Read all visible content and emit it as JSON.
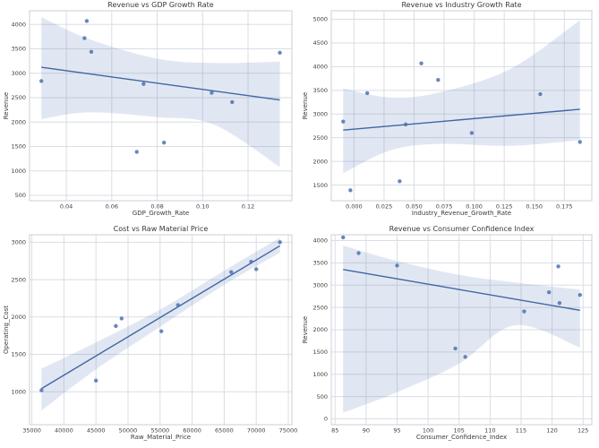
{
  "figure": {
    "background": "#ffffff"
  },
  "style": {
    "accent": "#4c72b0",
    "line_color": "#3e66a4",
    "band_color": "#4c72b0",
    "band_opacity": 0.17,
    "point_opacity": 0.85,
    "grid_color": "#dadde4",
    "spine_color": "#cbcfd6",
    "text_color": "#3f3f3f"
  },
  "chart_data": [
    {
      "type": "scatter",
      "title": "Revenue vs GDP Growth Rate",
      "xlabel": "GDP_Growth_Rate",
      "ylabel": "Revenue",
      "points": {
        "x": [
          0.029,
          0.048,
          0.049,
          0.051,
          0.071,
          0.074,
          0.083,
          0.104,
          0.113,
          0.134
        ],
        "y": [
          2840,
          3720,
          4070,
          3440,
          1390,
          2780,
          1580,
          2600,
          2410,
          3420
        ]
      },
      "regression_line": true,
      "ci_band": {
        "x": [
          0.029,
          0.05,
          0.08,
          0.105,
          0.134
        ],
        "upper": [
          4150,
          3700,
          3300,
          3210,
          3240
        ],
        "lower": [
          2060,
          2200,
          2100,
          1950,
          1080
        ]
      },
      "xlim": [
        0.0238,
        0.1393
      ],
      "ylim": [
        390,
        4280
      ],
      "xticks": {
        "values": [
          0.04,
          0.06,
          0.08,
          0.1,
          0.12
        ],
        "labels": [
          "0.04",
          "0.06",
          "0.08",
          "0.10",
          "0.12"
        ]
      },
      "yticks": {
        "values": [
          500,
          1000,
          1500,
          2000,
          2500,
          3000,
          3500,
          4000
        ],
        "labels": [
          "500",
          "1000",
          "1500",
          "2000",
          "2500",
          "3000",
          "3500",
          "4000"
        ]
      },
      "grid": true,
      "legend": null
    },
    {
      "type": "scatter",
      "title": "Revenue vs Industry Growth Rate",
      "xlabel": "Industry_Revenue_Growth_Rate",
      "ylabel": "Revenue",
      "points": {
        "x": [
          -0.009,
          -0.003,
          0.011,
          0.038,
          0.043,
          0.056,
          0.07,
          0.098,
          0.155,
          0.188
        ],
        "y": [
          2840,
          1390,
          3440,
          1580,
          2780,
          4070,
          3720,
          2600,
          3420,
          2410
        ]
      },
      "regression_line": true,
      "ci_band": {
        "x": [
          -0.009,
          0.03,
          0.07,
          0.13,
          0.188
        ],
        "upper": [
          3540,
          3350,
          3450,
          3950,
          4980
        ],
        "lower": [
          1750,
          2230,
          2370,
          2330,
          2450
        ]
      },
      "xlim": [
        -0.0189,
        0.1979
      ],
      "ylim": [
        1170,
        5180
      ],
      "xticks": {
        "values": [
          0.0,
          0.025,
          0.05,
          0.075,
          0.1,
          0.125,
          0.15,
          0.175
        ],
        "labels": [
          "0.000",
          "0.025",
          "0.050",
          "0.075",
          "0.100",
          "0.125",
          "0.150",
          "0.175"
        ]
      },
      "yticks": {
        "values": [
          1500,
          2000,
          2500,
          3000,
          3500,
          4000,
          4500,
          5000
        ],
        "labels": [
          "1500",
          "2000",
          "2500",
          "3000",
          "3500",
          "4000",
          "4500",
          "5000"
        ]
      },
      "grid": true,
      "legend": null
    },
    {
      "type": "scatter",
      "title": "Cost vs Raw Material Price",
      "xlabel": "Raw_Material_Price",
      "ylabel": "Operating_Cost",
      "points": {
        "x": [
          36500,
          45000,
          48100,
          49000,
          55200,
          57800,
          66100,
          69200,
          70000,
          73700
        ],
        "y": [
          1020,
          1150,
          1880,
          1980,
          1810,
          2160,
          2600,
          2740,
          2640,
          3000
        ]
      },
      "regression_line": true,
      "ci_band": {
        "x": [
          36500,
          45000,
          55000,
          65000,
          73700
        ],
        "upper": [
          1310,
          1660,
          2100,
          2620,
          3060
        ],
        "lower": [
          750,
          1300,
          1870,
          2430,
          2860
        ]
      },
      "xlim": [
        34640,
        75560
      ],
      "ylim": [
        560,
        3100
      ],
      "xticks": {
        "values": [
          35000,
          40000,
          45000,
          50000,
          55000,
          60000,
          65000,
          70000,
          75000
        ],
        "labels": [
          "35000",
          "40000",
          "45000",
          "50000",
          "55000",
          "60000",
          "65000",
          "70000",
          "75000"
        ]
      },
      "yticks": {
        "values": [
          1000,
          1500,
          2000,
          2500,
          3000
        ],
        "labels": [
          "1000",
          "1500",
          "2000",
          "2500",
          "3000"
        ]
      },
      "grid": true,
      "legend": null
    },
    {
      "type": "scatter",
      "title": "Revenue vs Consumer Confidence Index",
      "xlabel": "Consumer_Confidence_Index",
      "ylabel": "Revenue",
      "points": {
        "x": [
          86.3,
          88.8,
          95,
          104.4,
          106,
          115.5,
          119.5,
          121,
          121.2,
          124.5
        ],
        "y": [
          4070,
          3720,
          3440,
          1580,
          1390,
          2410,
          2840,
          3420,
          2600,
          2780
        ]
      },
      "regression_line": true,
      "ci_band": {
        "x": [
          86.3,
          95,
          105,
          114,
          124.5
        ],
        "upper": [
          3890,
          3540,
          3230,
          3060,
          2900
        ],
        "lower": [
          140,
          600,
          1240,
          2100,
          1600
        ]
      },
      "xlim": [
        84.39,
        126.41
      ],
      "ylim": [
        -130,
        4130
      ],
      "xticks": {
        "values": [
          85,
          90,
          95,
          100,
          105,
          110,
          115,
          120,
          125
        ],
        "labels": [
          "85",
          "90",
          "95",
          "100",
          "105",
          "110",
          "115",
          "120",
          "125"
        ]
      },
      "yticks": {
        "values": [
          0,
          500,
          1000,
          1500,
          2000,
          2500,
          3000,
          3500,
          4000
        ],
        "labels": [
          "0",
          "500",
          "1000",
          "1500",
          "2000",
          "2500",
          "3000",
          "3500",
          "4000"
        ]
      },
      "grid": true,
      "legend": null
    }
  ]
}
